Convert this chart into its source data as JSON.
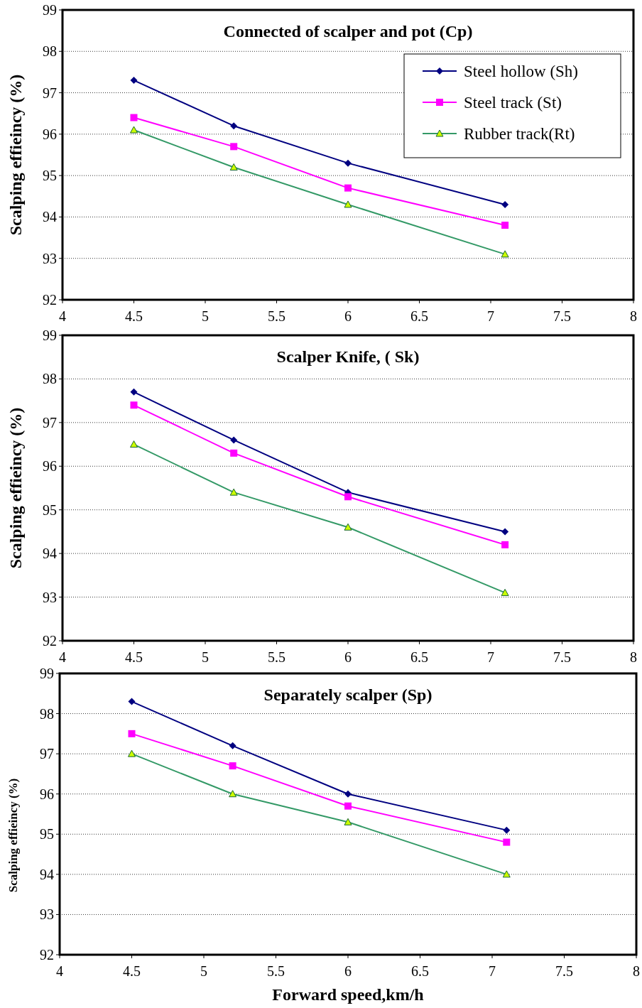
{
  "chart_data": [
    {
      "type": "line",
      "title": "Connected of scalper and pot (Cp)",
      "ylabel": "Scalping effieincy  (%)",
      "xlim": [
        4,
        8
      ],
      "xticks": [
        4,
        4.5,
        5,
        5.5,
        6,
        6.5,
        7,
        7.5,
        8
      ],
      "ylim": [
        92,
        99
      ],
      "yticks": [
        92,
        93,
        94,
        95,
        96,
        97,
        98,
        99
      ],
      "grid": "y",
      "legend": "top right",
      "line_style": "solid",
      "series": [
        {
          "name": "Steel hollow (Sh)",
          "color": "#000080",
          "marker": "diamond",
          "x": [
            4.5,
            5.2,
            6,
            7.1
          ],
          "values": [
            97.3,
            96.2,
            95.3,
            94.3
          ]
        },
        {
          "name": "Steel track (St)",
          "color": "#ff00ff",
          "marker": "square",
          "x": [
            4.5,
            5.2,
            6,
            7.1
          ],
          "values": [
            96.4,
            95.7,
            94.7,
            93.8
          ]
        },
        {
          "name": "Rubber track(Rt)",
          "color": "#339966",
          "marker": "triangle",
          "x": [
            4.5,
            5.2,
            6,
            7.1
          ],
          "values": [
            96.1,
            95.2,
            94.3,
            93.1
          ]
        }
      ]
    },
    {
      "type": "line",
      "title": "Scalper Knife, ( Sk)",
      "ylabel": "Scalping effieincy  (%)",
      "xlim": [
        4,
        8
      ],
      "xticks": [
        4,
        4.5,
        5,
        5.5,
        6,
        6.5,
        7,
        7.5,
        8
      ],
      "ylim": [
        92,
        99
      ],
      "yticks": [
        92,
        93,
        94,
        95,
        96,
        97,
        98,
        99
      ],
      "grid": "y",
      "legend": false,
      "line_style": "solid",
      "series": [
        {
          "color": "#000080",
          "marker": "diamond",
          "x": [
            4.5,
            5.2,
            6,
            7.1
          ],
          "values": [
            97.7,
            96.6,
            95.4,
            94.5
          ]
        },
        {
          "color": "#ff00ff",
          "marker": "square",
          "x": [
            4.5,
            5.2,
            6,
            7.1
          ],
          "values": [
            97.4,
            96.3,
            95.3,
            94.2
          ]
        },
        {
          "color": "#339966",
          "marker": "triangle",
          "x": [
            4.5,
            5.2,
            6,
            7.1
          ],
          "values": [
            96.5,
            95.4,
            94.6,
            93.1
          ]
        }
      ]
    },
    {
      "type": "line",
      "title": "Separately scalper (Sp)",
      "ylabel": "Scalping effieincy  (%)",
      "xlabel": "Forward speed,km/h",
      "xlim": [
        4,
        8
      ],
      "xticks": [
        4,
        4.5,
        5,
        5.5,
        6,
        6.5,
        7,
        7.5,
        8
      ],
      "ylim": [
        92,
        99
      ],
      "yticks": [
        92,
        93,
        94,
        95,
        96,
        97,
        98,
        99
      ],
      "grid": "y",
      "legend": false,
      "line_style": "solid",
      "series": [
        {
          "color": "#000080",
          "marker": "diamond",
          "x": [
            4.5,
            5.2,
            6,
            7.1
          ],
          "values": [
            98.3,
            97.2,
            96.0,
            95.1
          ]
        },
        {
          "color": "#ff00ff",
          "marker": "square",
          "x": [
            4.5,
            5.2,
            6,
            7.1
          ],
          "values": [
            97.5,
            96.7,
            95.7,
            94.8
          ]
        },
        {
          "color": "#339966",
          "marker": "triangle",
          "x": [
            4.5,
            5.2,
            6,
            7.1
          ],
          "values": [
            97.0,
            96.0,
            95.3,
            94.0
          ]
        }
      ]
    }
  ]
}
